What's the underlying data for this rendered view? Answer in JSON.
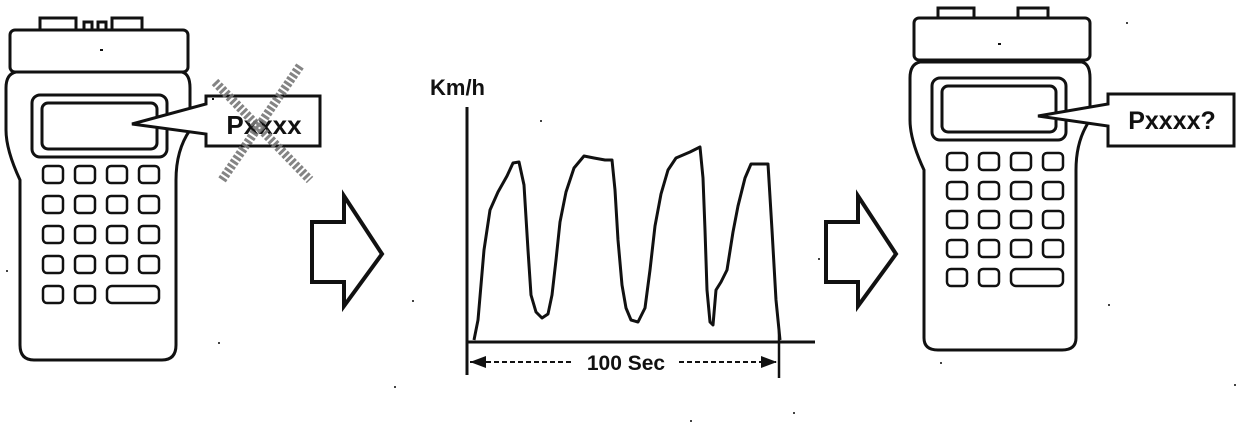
{
  "left_tool": {
    "callout_text": "Pxxxx",
    "crossed_out": true
  },
  "graph": {
    "y_axis_label": "Km/h",
    "duration_label": "100 Sec"
  },
  "right_tool": {
    "callout_text": "Pxxxx?"
  },
  "arrows": [
    "right-arrow",
    "right-arrow"
  ],
  "icons": [
    "scan-tool-icon",
    "cross-out-icon",
    "right-arrow-icon",
    "speed-trace-line"
  ]
}
